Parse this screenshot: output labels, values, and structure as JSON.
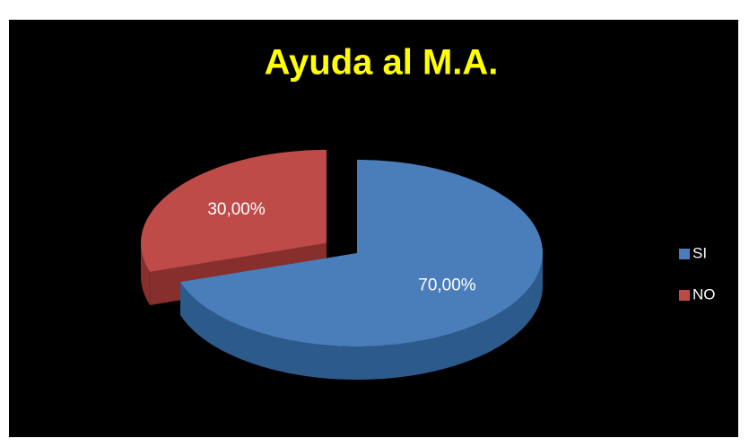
{
  "chart_data": {
    "type": "pie3d",
    "title": "Ayuda al M.A.",
    "categories": [
      "SI",
      "NO"
    ],
    "values": [
      70,
      30
    ],
    "value_labels": [
      "70,00%",
      "30,00%"
    ],
    "colors": [
      "#4a7ebb",
      "#be4b48"
    ],
    "side_colors": [
      "#2c5a8a",
      "#862f2c"
    ],
    "legend": "right"
  }
}
